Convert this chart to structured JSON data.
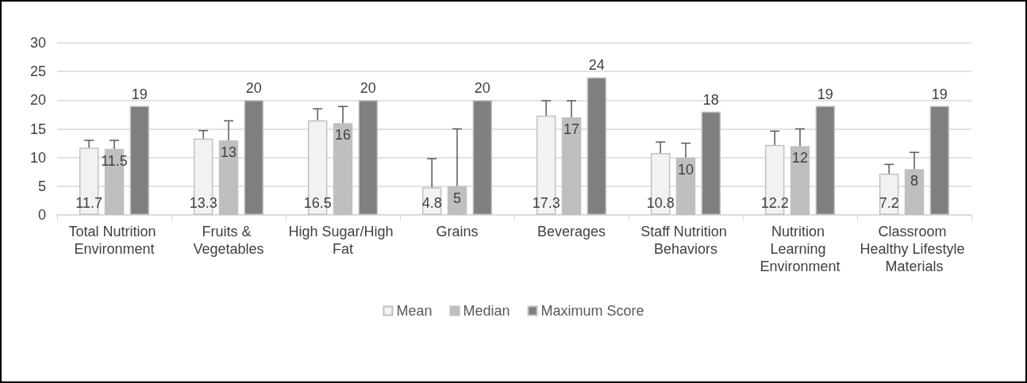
{
  "chart_data": {
    "type": "bar",
    "categories": [
      "Total Nutrition Environment",
      "Fruits & Vegetables",
      "High Sugar/High Fat",
      "Grains",
      "Beverages",
      "Staff Nutrition Behaviors",
      "Nutrition Learning Environment",
      "Classroom Healthy Lifestyle Materials"
    ],
    "series": [
      {
        "name": "Mean",
        "color": "#f2f2f2",
        "values": [
          11.7,
          13.3,
          16.5,
          4.8,
          17.3,
          10.8,
          12.2,
          7.2
        ],
        "errors": [
          [
            11.7,
            13.0
          ],
          [
            13.3,
            14.7
          ],
          [
            16.5,
            18.5
          ],
          [
            4.8,
            9.8
          ],
          [
            17.3,
            19.9
          ],
          [
            10.8,
            12.7
          ],
          [
            12.2,
            14.6
          ],
          [
            7.2,
            8.8
          ]
        ]
      },
      {
        "name": "Median",
        "color": "#bfbfbf",
        "values": [
          11.5,
          13,
          16,
          5,
          17,
          10,
          12,
          8
        ],
        "errors": [
          [
            11.5,
            13.0
          ],
          [
            13,
            16.4
          ],
          [
            16,
            18.9
          ],
          [
            5,
            15.0
          ],
          [
            17,
            19.9
          ],
          [
            10,
            12.5
          ],
          [
            12,
            15.0
          ],
          [
            8,
            10.9
          ]
        ]
      },
      {
        "name": "Maximum Score",
        "color": "#7f7f7f",
        "values": [
          19,
          20,
          20,
          20,
          24,
          18,
          19,
          19
        ]
      }
    ],
    "ylim": [
      0,
      30
    ],
    "yticks": [
      0,
      5,
      10,
      15,
      20,
      25,
      30
    ],
    "grid": "y",
    "legend": "bottom",
    "data_labels": true
  }
}
